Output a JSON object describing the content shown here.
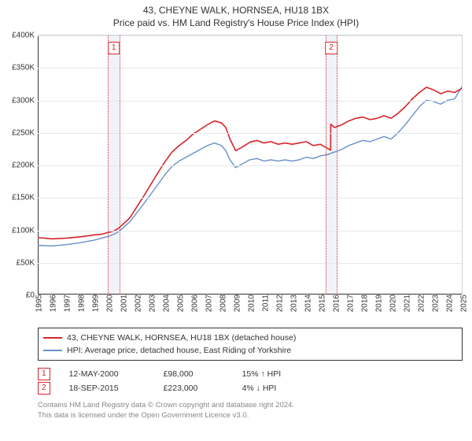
{
  "title": "43, CHEYNE WALK, HORNSEA, HU18 1BX",
  "subtitle": "Price paid vs. HM Land Registry's House Price Index (HPI)",
  "chart": {
    "type": "line",
    "x_start_year": 1995,
    "x_end_year": 2025,
    "ylim": [
      0,
      400000
    ],
    "ytick_step": 50000,
    "y_tick_labels": [
      "£0",
      "£50K",
      "£100K",
      "£150K",
      "£200K",
      "£250K",
      "£300K",
      "£350K",
      "£400K"
    ],
    "x_tick_labels": [
      "1995",
      "1996",
      "1997",
      "1998",
      "1999",
      "2000",
      "2001",
      "2002",
      "2003",
      "2004",
      "2005",
      "2006",
      "2007",
      "2008",
      "2009",
      "2010",
      "2011",
      "2012",
      "2013",
      "2014",
      "2015",
      "2016",
      "2017",
      "2018",
      "2019",
      "2020",
      "2021",
      "2022",
      "2023",
      "2024",
      "2025"
    ],
    "background_color": "#ffffff",
    "grid_color": "#e6e8ea",
    "axis_color": "#333333",
    "series": [
      {
        "name": "property",
        "label": "43, CHEYNE WALK, HORNSEA, HU18 1BX (detached house)",
        "color": "#d6242a",
        "line_width": 1.6,
        "data": [
          [
            1995,
            88000
          ],
          [
            1996,
            86000
          ],
          [
            1997,
            87000
          ],
          [
            1998,
            89000
          ],
          [
            1999,
            92000
          ],
          [
            1999.5,
            93000
          ],
          [
            2000.37,
            98000
          ],
          [
            2000.7,
            102000
          ],
          [
            2001,
            108000
          ],
          [
            2001.5,
            118000
          ],
          [
            2002,
            135000
          ],
          [
            2002.5,
            152000
          ],
          [
            2003,
            170000
          ],
          [
            2003.5,
            188000
          ],
          [
            2004,
            205000
          ],
          [
            2004.5,
            220000
          ],
          [
            2005,
            230000
          ],
          [
            2005.5,
            238000
          ],
          [
            2006,
            248000
          ],
          [
            2006.5,
            255000
          ],
          [
            2007,
            262000
          ],
          [
            2007.5,
            268000
          ],
          [
            2008,
            265000
          ],
          [
            2008.3,
            258000
          ],
          [
            2008.6,
            240000
          ],
          [
            2009,
            222000
          ],
          [
            2009.5,
            228000
          ],
          [
            2010,
            235000
          ],
          [
            2010.5,
            238000
          ],
          [
            2011,
            234000
          ],
          [
            2011.5,
            236000
          ],
          [
            2012,
            232000
          ],
          [
            2012.5,
            234000
          ],
          [
            2013,
            232000
          ],
          [
            2013.5,
            234000
          ],
          [
            2014,
            236000
          ],
          [
            2014.5,
            230000
          ],
          [
            2015,
            232000
          ],
          [
            2015.3,
            228000
          ],
          [
            2015.72,
            223000
          ],
          [
            2015.73,
            263000
          ],
          [
            2016,
            258000
          ],
          [
            2016.5,
            262000
          ],
          [
            2017,
            268000
          ],
          [
            2017.5,
            272000
          ],
          [
            2018,
            274000
          ],
          [
            2018.5,
            270000
          ],
          [
            2019,
            272000
          ],
          [
            2019.5,
            276000
          ],
          [
            2020,
            272000
          ],
          [
            2020.5,
            280000
          ],
          [
            2021,
            290000
          ],
          [
            2021.5,
            302000
          ],
          [
            2022,
            312000
          ],
          [
            2022.5,
            320000
          ],
          [
            2023,
            316000
          ],
          [
            2023.5,
            310000
          ],
          [
            2024,
            314000
          ],
          [
            2024.5,
            312000
          ],
          [
            2025,
            318000
          ],
          [
            2025.3,
            338000
          ]
        ]
      },
      {
        "name": "hpi",
        "label": "HPI: Average price, detached house, East Riding of Yorkshire",
        "color": "#6a8fc8",
        "line_width": 1.4,
        "data": [
          [
            1995,
            76000
          ],
          [
            1996,
            75000
          ],
          [
            1997,
            77000
          ],
          [
            1998,
            80000
          ],
          [
            1999,
            84000
          ],
          [
            2000,
            90000
          ],
          [
            2000.5,
            94000
          ],
          [
            2001,
            102000
          ],
          [
            2001.5,
            112000
          ],
          [
            2002,
            126000
          ],
          [
            2002.5,
            140000
          ],
          [
            2003,
            155000
          ],
          [
            2003.5,
            170000
          ],
          [
            2004,
            185000
          ],
          [
            2004.5,
            198000
          ],
          [
            2005,
            206000
          ],
          [
            2005.5,
            212000
          ],
          [
            2006,
            218000
          ],
          [
            2006.5,
            224000
          ],
          [
            2007,
            230000
          ],
          [
            2007.5,
            234000
          ],
          [
            2008,
            230000
          ],
          [
            2008.3,
            222000
          ],
          [
            2008.6,
            208000
          ],
          [
            2009,
            196000
          ],
          [
            2009.5,
            202000
          ],
          [
            2010,
            208000
          ],
          [
            2010.5,
            210000
          ],
          [
            2011,
            206000
          ],
          [
            2011.5,
            208000
          ],
          [
            2012,
            206000
          ],
          [
            2012.5,
            208000
          ],
          [
            2013,
            206000
          ],
          [
            2013.5,
            208000
          ],
          [
            2014,
            212000
          ],
          [
            2014.5,
            210000
          ],
          [
            2015,
            214000
          ],
          [
            2015.5,
            216000
          ],
          [
            2016,
            220000
          ],
          [
            2016.5,
            224000
          ],
          [
            2017,
            230000
          ],
          [
            2017.5,
            234000
          ],
          [
            2018,
            238000
          ],
          [
            2018.5,
            236000
          ],
          [
            2019,
            240000
          ],
          [
            2019.5,
            244000
          ],
          [
            2020,
            240000
          ],
          [
            2020.5,
            250000
          ],
          [
            2021,
            262000
          ],
          [
            2021.5,
            276000
          ],
          [
            2022,
            290000
          ],
          [
            2022.5,
            300000
          ],
          [
            2023,
            298000
          ],
          [
            2023.5,
            294000
          ],
          [
            2024,
            300000
          ],
          [
            2024.5,
            302000
          ],
          [
            2025,
            320000
          ],
          [
            2025.3,
            342000
          ]
        ]
      }
    ],
    "events": [
      {
        "marker": "1",
        "x_year": 2000.37,
        "date": "12-MAY-2000",
        "price": "£98,000",
        "delta": "15% ↑ HPI",
        "color": "#d6242a",
        "zone_width_years": 0.8,
        "zone_fill": "rgba(237,242,248,0.85)"
      },
      {
        "marker": "2",
        "x_year": 2015.72,
        "date": "18-SEP-2015",
        "price": "£223,000",
        "delta": "4% ↓ HPI",
        "color": "#d6242a",
        "zone_width_years": 0.8,
        "zone_fill": "rgba(237,242,248,0.85)"
      }
    ]
  },
  "footer_line1": "Contains HM Land Registry data © Crown copyright and database right 2024.",
  "footer_line2": "This data is licensed under the Open Government Licence v3.0."
}
